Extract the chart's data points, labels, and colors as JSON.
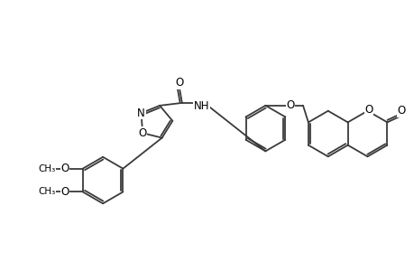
{
  "bg_color": "#ffffff",
  "line_color": "#3a3a3a",
  "line_width": 1.3,
  "font_size": 8.5,
  "fig_width": 4.6,
  "fig_height": 3.0,
  "dpi": 100,
  "xlim": [
    0,
    46
  ],
  "ylim": [
    0,
    30
  ]
}
